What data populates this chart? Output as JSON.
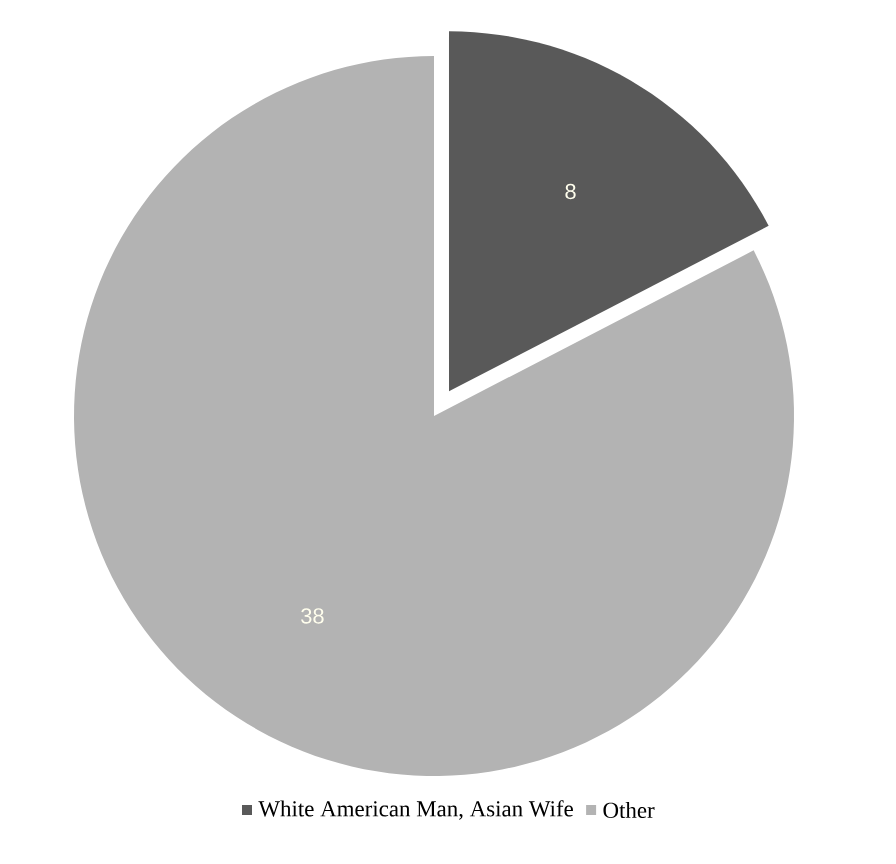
{
  "chart_data": {
    "type": "pie",
    "categories": [
      "White American Man, Asian Wife",
      "Other"
    ],
    "values": [
      8,
      38
    ],
    "colors": [
      "#595959",
      "#b3b3b3"
    ],
    "data_labels": true,
    "legend": "bottom"
  }
}
